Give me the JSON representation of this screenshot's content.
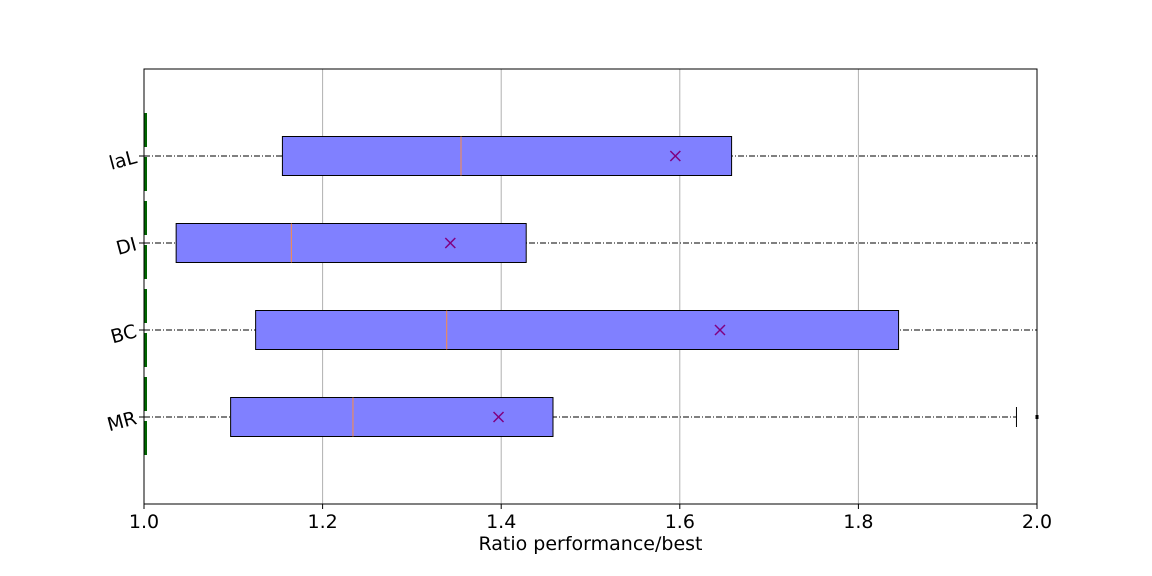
{
  "chart_data": {
    "type": "boxplot",
    "orientation": "horizontal",
    "title": "",
    "xlabel": "Ratio performance/best",
    "ylabel": "",
    "xlim": [
      1.0,
      2.0
    ],
    "xticks": [
      1.0,
      1.2,
      1.4,
      1.6,
      1.8,
      2.0
    ],
    "xtick_labels": [
      "1.0",
      "1.2",
      "1.4",
      "1.6",
      "1.8",
      "2.0"
    ],
    "grid": "vertical",
    "categories": [
      "MR",
      "BC",
      "DI",
      "IaL"
    ],
    "category_labels": [
      "MR",
      "BC",
      "DI",
      "laL"
    ],
    "boxes": [
      {
        "name": "MR",
        "q1": 1.097,
        "median": 1.234,
        "q3": 1.458,
        "mean": 1.397,
        "whisker_low": 1.0,
        "whisker_high": 1.977,
        "outliers": [
          2.0
        ]
      },
      {
        "name": "BC",
        "q1": 1.125,
        "median": 1.339,
        "q3": 1.845,
        "mean": 1.645,
        "whisker_low": 1.0,
        "whisker_high": 2.0,
        "outliers": []
      },
      {
        "name": "DI",
        "q1": 1.036,
        "median": 1.165,
        "q3": 1.428,
        "mean": 1.343,
        "whisker_low": 1.0,
        "whisker_high": 2.0,
        "outliers": []
      },
      {
        "name": "IaL",
        "q1": 1.155,
        "median": 1.355,
        "q3": 1.658,
        "mean": 1.595,
        "whisker_low": 1.0,
        "whisker_high": 2.0,
        "outliers": []
      }
    ],
    "colors": {
      "box_fill": "#8080ff",
      "box_edge": "#000000",
      "median": "#ff8c40",
      "mean_marker": "#800080",
      "whisker": "#000000",
      "left_markers": "#006400",
      "grid": "#b0b0b0"
    }
  }
}
